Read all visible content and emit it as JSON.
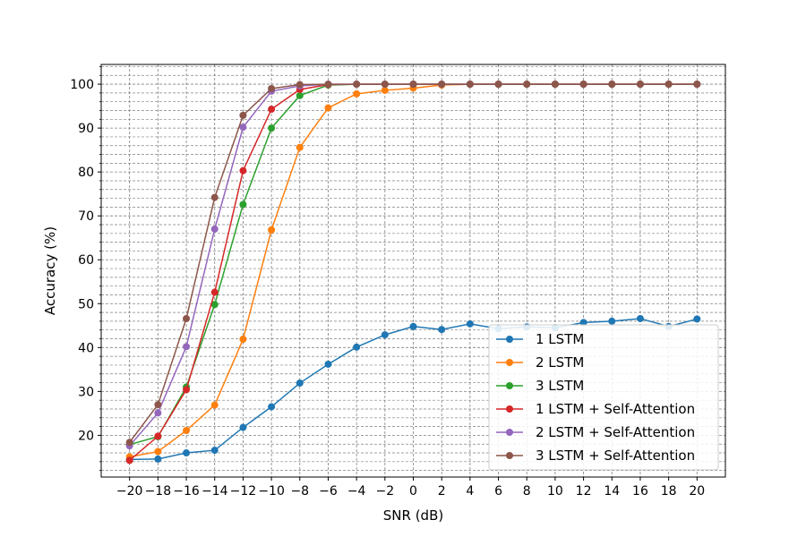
{
  "chart_data": {
    "type": "line",
    "title": "",
    "xlabel": "SNR (dB)",
    "ylabel": "Accuracy (%)",
    "x": [
      -20,
      -18,
      -16,
      -14,
      -12,
      -10,
      -8,
      -6,
      -4,
      -2,
      0,
      2,
      4,
      6,
      8,
      10,
      12,
      14,
      16,
      18,
      20
    ],
    "x_tick_labels": [
      "−20",
      "−18",
      "−16",
      "−14",
      "−12",
      "−10",
      "−8",
      "−6",
      "−4",
      "−2",
      "0",
      "2",
      "4",
      "6",
      "8",
      "10",
      "12",
      "14",
      "16",
      "18",
      "20"
    ],
    "xlim": [
      -22,
      22
    ],
    "ylim": [
      10.5,
      104.5
    ],
    "y_ticks": [
      20,
      30,
      40,
      50,
      60,
      70,
      80,
      90,
      100
    ],
    "y_tick_labels": [
      "20",
      "30",
      "40",
      "50",
      "60",
      "70",
      "80",
      "90",
      "100"
    ],
    "y_minor_step": 2,
    "grid": true,
    "legend_position": "lower-right",
    "series": [
      {
        "name": "1 LSTM",
        "color": "#1f77b4",
        "values": [
          14.5,
          14.6,
          16.0,
          16.6,
          21.8,
          26.5,
          31.9,
          36.2,
          40.1,
          42.9,
          44.8,
          44.1,
          45.4,
          44.3,
          44.7,
          44.5,
          45.7,
          46.0,
          46.6,
          44.8,
          46.5
        ]
      },
      {
        "name": "2 LSTM",
        "color": "#ff7f0e",
        "values": [
          15.1,
          16.3,
          21.1,
          26.9,
          41.9,
          66.8,
          85.6,
          94.6,
          97.8,
          98.6,
          99.1,
          99.8,
          100,
          100,
          100,
          100,
          100,
          100,
          100,
          100,
          100
        ]
      },
      {
        "name": "3 LSTM",
        "color": "#2ca02c",
        "values": [
          17.9,
          19.7,
          31.0,
          49.8,
          72.6,
          90.0,
          97.4,
          99.8,
          100,
          100,
          100,
          100,
          100,
          100,
          100,
          100,
          100,
          100,
          100,
          100,
          100
        ]
      },
      {
        "name": "1 LSTM + Self-Attention",
        "color": "#d62728",
        "values": [
          14.3,
          19.8,
          30.4,
          52.6,
          80.3,
          94.3,
          98.8,
          99.9,
          100,
          100,
          100,
          100,
          100,
          100,
          100,
          100,
          100,
          100,
          100,
          100,
          100
        ]
      },
      {
        "name": "2 LSTM + Self-Attention",
        "color": "#9467bd",
        "values": [
          17.6,
          25.1,
          40.2,
          67.0,
          90.2,
          98.4,
          99.6,
          100,
          100,
          100,
          100,
          100,
          100,
          100,
          100,
          100,
          100,
          100,
          100,
          100,
          100
        ]
      },
      {
        "name": "3 LSTM + Self-Attention",
        "color": "#8c564b",
        "values": [
          18.4,
          27.0,
          46.6,
          74.2,
          92.9,
          99.0,
          99.9,
          100,
          100,
          100,
          100,
          100,
          100,
          100,
          100,
          100,
          100,
          100,
          100,
          100,
          100
        ]
      }
    ]
  }
}
